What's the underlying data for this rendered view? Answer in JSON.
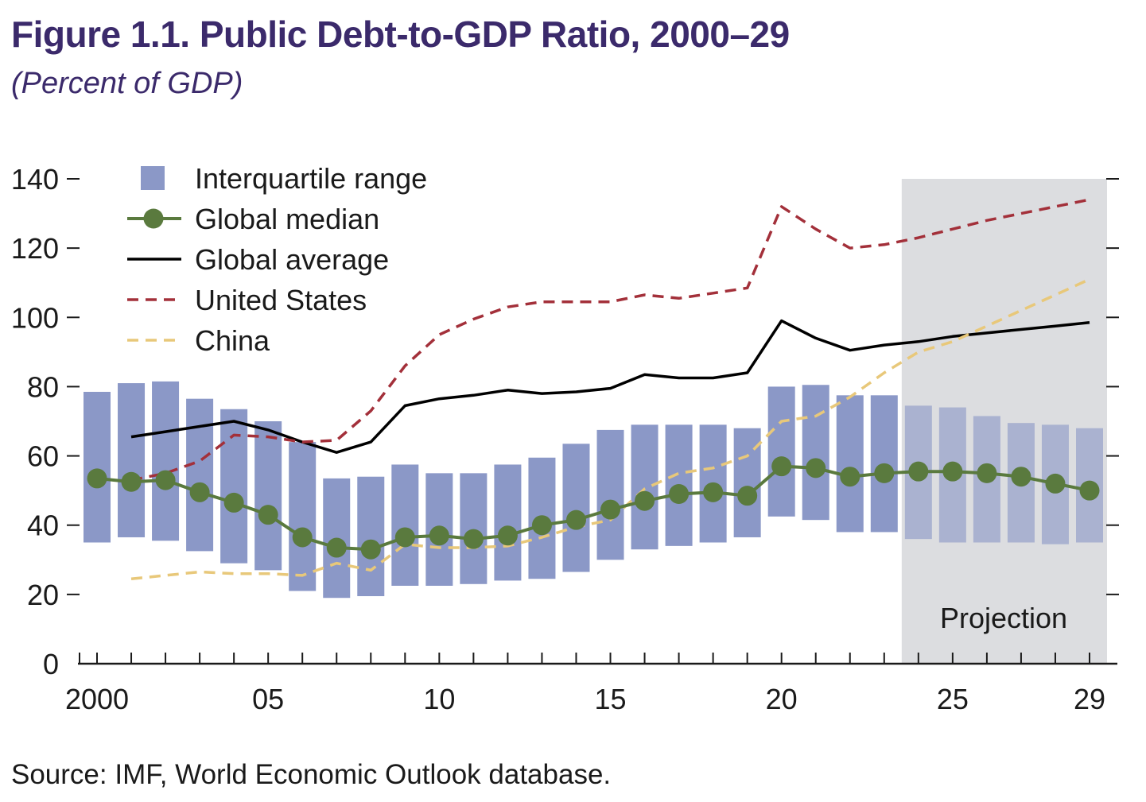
{
  "title": "Figure 1.1. Public Debt-to-GDP Ratio, 2000–29",
  "subtitle": "(Percent of GDP)",
  "source": "Source: IMF, World Economic Outlook database.",
  "colors": {
    "title": "#3b2a6b",
    "iqr": "#8b98c7",
    "median": "#5a7a3e",
    "average": "#000000",
    "us": "#a3303a",
    "china": "#e8c87a",
    "projection_shade": "#dcdde0"
  },
  "chart_data": {
    "type": "line",
    "title": "Figure 1.1. Public Debt-to-GDP Ratio, 2000–29",
    "subtitle": "(Percent of GDP)",
    "xlabel": "",
    "ylabel": "",
    "ylim": [
      0,
      140
    ],
    "yticks": [
      0,
      20,
      40,
      60,
      80,
      100,
      120,
      140
    ],
    "xlim": [
      2000,
      2029
    ],
    "xtick_values": [
      2000,
      2005,
      2010,
      2015,
      2020,
      2025,
      2029
    ],
    "xtick_labels": [
      "2000",
      "05",
      "10",
      "15",
      "20",
      "25",
      "29"
    ],
    "grid": false,
    "legend_position": "top-left",
    "projection": {
      "label": "Projection",
      "start_year": 2024,
      "end_year": 2029
    },
    "x": [
      2000,
      2001,
      2002,
      2003,
      2004,
      2005,
      2006,
      2007,
      2008,
      2009,
      2010,
      2011,
      2012,
      2013,
      2014,
      2015,
      2016,
      2017,
      2018,
      2019,
      2020,
      2021,
      2022,
      2023,
      2024,
      2025,
      2026,
      2027,
      2028,
      2029
    ],
    "interquartile_range": {
      "name": "Interquartile range",
      "low": [
        35,
        36.5,
        35.5,
        32.5,
        29,
        27,
        21,
        19,
        19.5,
        22.5,
        22.5,
        23,
        24,
        24.5,
        26.5,
        30,
        33,
        34,
        35,
        36.5,
        42.5,
        41.5,
        38,
        38,
        36,
        35,
        35,
        35,
        34.5,
        35
      ],
      "high": [
        78.5,
        81,
        81.5,
        76.5,
        73.5,
        70,
        64,
        53.5,
        54,
        57.5,
        55,
        55,
        57.5,
        59.5,
        63.5,
        67.5,
        69,
        69,
        69,
        68,
        80,
        80.5,
        77.5,
        77.5,
        74.5,
        74,
        71.5,
        69.5,
        69,
        68
      ]
    },
    "series": [
      {
        "name": "Global median",
        "style": "line-with-markers",
        "values": [
          53.5,
          52.5,
          53,
          49.5,
          46.5,
          43,
          36.5,
          33.5,
          33,
          36.5,
          37,
          36,
          37,
          40,
          41.5,
          44.5,
          47,
          49,
          49.5,
          48.5,
          57,
          56.5,
          54,
          55,
          55.5,
          55.5,
          55,
          54,
          52,
          50
        ]
      },
      {
        "name": "Global average",
        "style": "solid",
        "values": [
          null,
          65.5,
          67,
          68.5,
          70,
          67.5,
          64,
          61,
          64,
          74.5,
          76.5,
          77.5,
          79,
          78,
          78.5,
          79.5,
          83.5,
          82.5,
          82.5,
          84,
          99,
          94,
          90.5,
          92,
          93,
          94.5,
          95.5,
          96.5,
          97.5,
          98.5
        ]
      },
      {
        "name": "United States",
        "style": "dashed",
        "values": [
          null,
          53,
          55,
          58.5,
          66,
          65.5,
          64,
          64.5,
          73,
          86,
          95,
          99.5,
          103,
          104.5,
          104.5,
          104.5,
          106.5,
          105.5,
          107,
          108.5,
          132,
          125.5,
          120,
          121,
          123,
          125.5,
          128,
          130,
          132,
          134
        ]
      },
      {
        "name": "China",
        "style": "dashed",
        "values": [
          null,
          24.5,
          25.5,
          26.5,
          26,
          26,
          25.5,
          29,
          27,
          34.5,
          33.5,
          33.5,
          34,
          36.5,
          39.5,
          41.5,
          50.5,
          55,
          56.5,
          60,
          70,
          71.5,
          77,
          84,
          90,
          93,
          97.5,
          102,
          106.5,
          111
        ]
      }
    ]
  }
}
